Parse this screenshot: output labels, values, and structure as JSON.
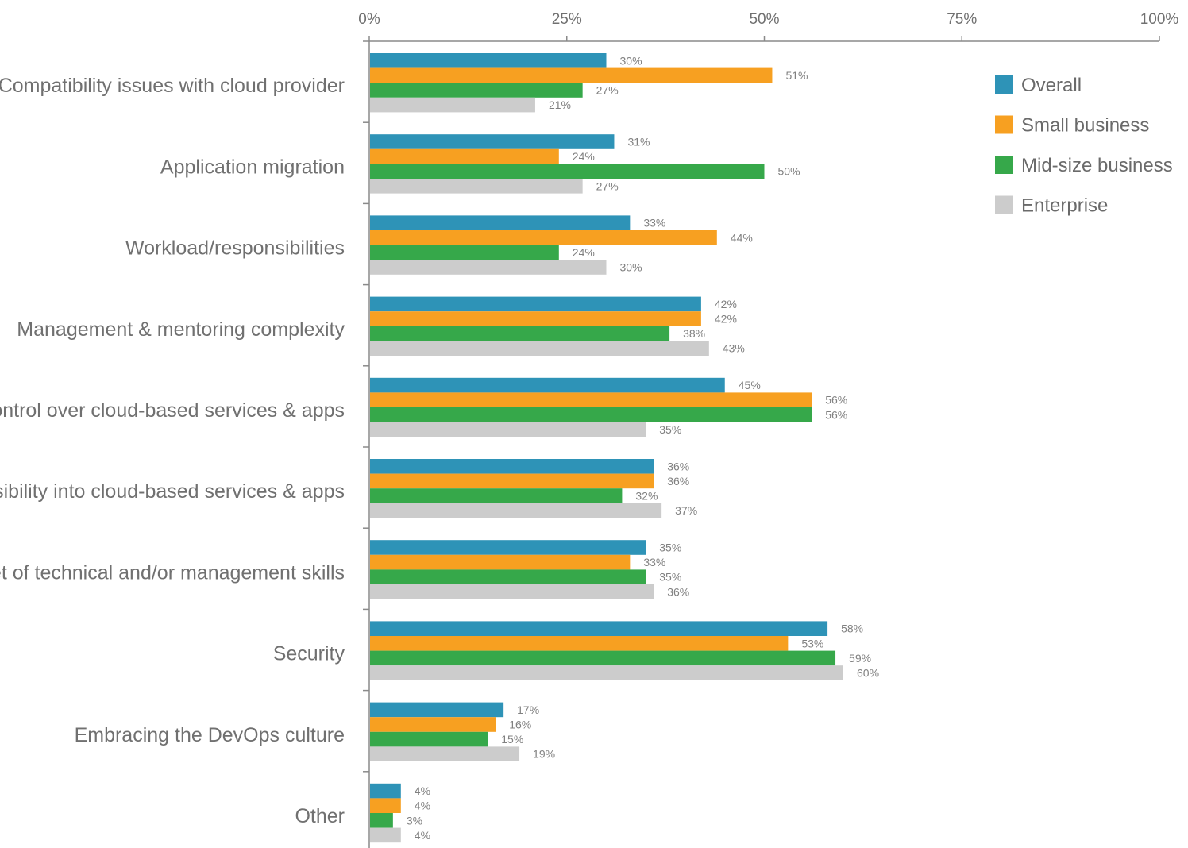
{
  "chart_data": {
    "type": "bar",
    "orientation": "horizontal",
    "categories": [
      "Compatibility issues with cloud provider",
      "Application migration",
      "Workload/responsibilities",
      "Management & mentoring complexity",
      "Control over cloud-based services & apps",
      "Visibility into cloud-based services & apps",
      "New set of technical and/or management skills",
      "Security",
      "Embracing the DevOps culture",
      "Other"
    ],
    "series": [
      {
        "name": "Overall",
        "color": "#2e93b7",
        "values": [
          30,
          31,
          33,
          42,
          45,
          36,
          35,
          58,
          17,
          4
        ]
      },
      {
        "name": "Small business",
        "color": "#f7a021",
        "values": [
          51,
          24,
          44,
          42,
          56,
          36,
          33,
          53,
          16,
          4
        ]
      },
      {
        "name": "Mid-size business",
        "color": "#36a84a",
        "values": [
          27,
          50,
          24,
          38,
          56,
          32,
          35,
          59,
          15,
          3
        ]
      },
      {
        "name": "Enterprise",
        "color": "#cccccc",
        "values": [
          21,
          27,
          30,
          43,
          35,
          37,
          36,
          60,
          19,
          4
        ]
      }
    ],
    "xlim": [
      0,
      100
    ],
    "x_ticks": [
      "0%",
      "25%",
      "50%",
      "75%",
      "100%"
    ],
    "value_suffix": "%",
    "legend_position": "top-right",
    "grid": false
  }
}
